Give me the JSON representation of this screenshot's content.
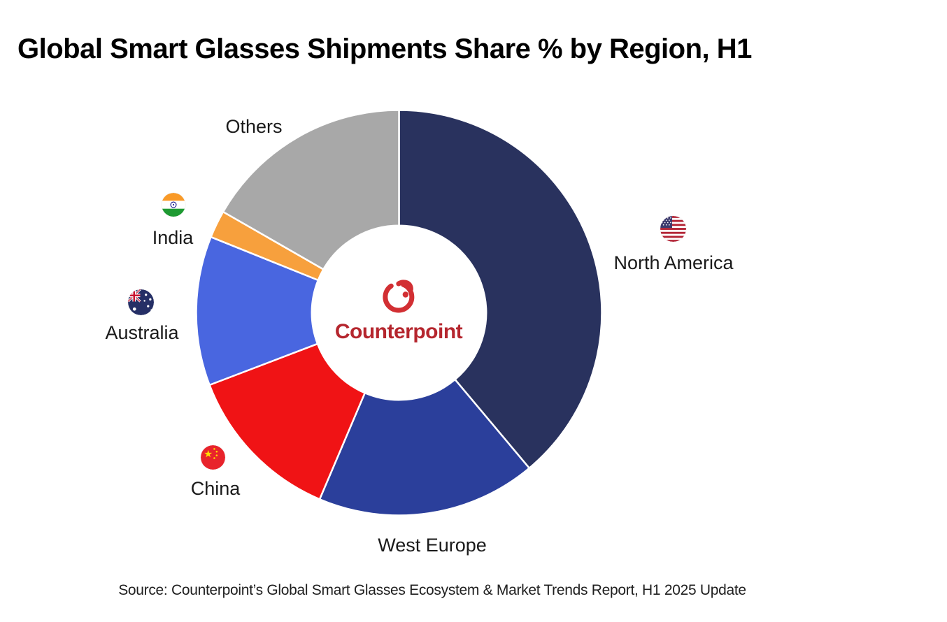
{
  "title": "Global Smart Glasses Shipments Share % by Region, H1",
  "source_line": "Source: Counterpoint’s Global Smart Glasses Ecosystem & Market Trends Report, H1 2025 Update",
  "brand": {
    "name": "Counterpoint",
    "logo_mark_color": "#D22F33",
    "logo_text_color": "#B5262E"
  },
  "chart_data": {
    "type": "pie",
    "subtype": "donut",
    "title": "Global Smart Glasses Shipments Share % by Region, H1",
    "start_angle_deg": 0,
    "direction": "clockwise",
    "inner_radius_ratio": 0.43,
    "data_labels_shown": false,
    "values_estimated_from_arc_angles": true,
    "categories": [
      "North America",
      "West Europe",
      "China",
      "Australia",
      "India",
      "Others"
    ],
    "values": [
      38.9,
      17.5,
      12.8,
      11.9,
      2.2,
      16.7
    ],
    "slices": [
      {
        "label": "North America",
        "value": 38.9,
        "color": "#29325E",
        "flag": "us-flag-icon"
      },
      {
        "label": "West Europe",
        "value": 17.5,
        "color": "#2B3F9B",
        "flag": null
      },
      {
        "label": "China",
        "value": 12.8,
        "color": "#F01315",
        "flag": "china-flag-icon"
      },
      {
        "label": "Australia",
        "value": 11.9,
        "color": "#4966E0",
        "flag": "australia-flag-icon"
      },
      {
        "label": "India",
        "value": 2.2,
        "color": "#F7A03D",
        "flag": "india-flag-icon"
      },
      {
        "label": "Others",
        "value": 16.7,
        "color": "#A8A8A8",
        "flag": null
      }
    ],
    "legend_position": "labels-around-chart"
  }
}
